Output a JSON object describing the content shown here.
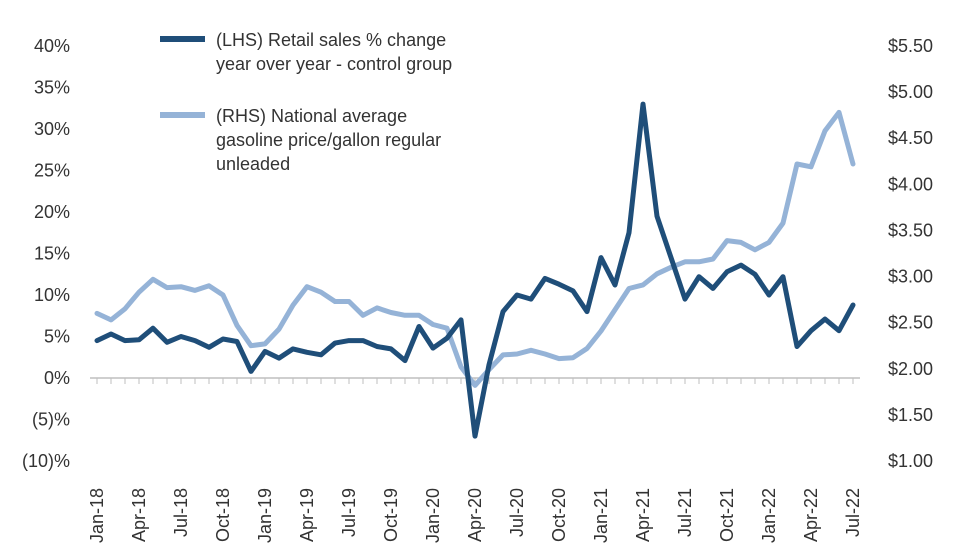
{
  "chart_data": {
    "type": "line",
    "title": "",
    "xlabel": "",
    "x": [
      "Jan-18",
      "Feb-18",
      "Mar-18",
      "Apr-18",
      "May-18",
      "Jun-18",
      "Jul-18",
      "Aug-18",
      "Sep-18",
      "Oct-18",
      "Nov-18",
      "Dec-18",
      "Jan-19",
      "Feb-19",
      "Mar-19",
      "Apr-19",
      "May-19",
      "Jun-19",
      "Jul-19",
      "Aug-19",
      "Sep-19",
      "Oct-19",
      "Nov-19",
      "Dec-19",
      "Jan-20",
      "Feb-20",
      "Mar-20",
      "Apr-20",
      "May-20",
      "Jun-20",
      "Jul-20",
      "Aug-20",
      "Sep-20",
      "Oct-20",
      "Nov-20",
      "Dec-20",
      "Jan-21",
      "Feb-21",
      "Mar-21",
      "Apr-21",
      "May-21",
      "Jun-21",
      "Jul-21",
      "Aug-21",
      "Sep-21",
      "Oct-21",
      "Nov-21",
      "Dec-21",
      "Jan-22",
      "Feb-22",
      "Mar-22",
      "Apr-22",
      "May-22",
      "Jun-22",
      "Jul-22"
    ],
    "x_tick_labels": [
      "Jan-18",
      "Apr-18",
      "Jul-18",
      "Oct-18",
      "Jan-19",
      "Apr-19",
      "Jul-19",
      "Oct-19",
      "Jan-20",
      "Apr-20",
      "Jul-20",
      "Oct-20",
      "Jan-21",
      "Apr-21",
      "Jul-21",
      "Oct-21",
      "Jan-22",
      "Apr-22",
      "Jul-22"
    ],
    "y_left": {
      "lim": [
        -10,
        40
      ],
      "tick_values": [
        -10,
        -5,
        0,
        5,
        10,
        15,
        20,
        25,
        30,
        35,
        40
      ],
      "tick_labels": [
        "(10)%",
        "(5)%",
        "0%",
        "5%",
        "10%",
        "15%",
        "20%",
        "25%",
        "30%",
        "35%",
        "40%"
      ]
    },
    "y_right": {
      "lim": [
        1.0,
        5.5
      ],
      "tick_values": [
        1.0,
        1.5,
        2.0,
        2.5,
        3.0,
        3.5,
        4.0,
        4.5,
        5.0,
        5.5
      ],
      "tick_labels": [
        "$1.00",
        "$1.50",
        "$2.00",
        "$2.50",
        "$3.00",
        "$3.50",
        "$4.00",
        "$4.50",
        "$5.00",
        "$5.50"
      ]
    },
    "grid": false,
    "legend_position": "top-center",
    "series": [
      {
        "name_lines": [
          "(LHS) Retail sales % change",
          "year over year - control group"
        ],
        "axis": "left",
        "color": "#1f4e79",
        "values": [
          4.5,
          5.3,
          4.5,
          4.6,
          6.0,
          4.3,
          5.0,
          4.5,
          3.7,
          4.7,
          4.4,
          0.8,
          3.2,
          2.4,
          3.5,
          3.1,
          2.8,
          4.2,
          4.5,
          4.5,
          3.8,
          3.5,
          2.1,
          6.2,
          3.6,
          4.8,
          7.0,
          -7.0,
          1.6,
          8.0,
          10.0,
          9.5,
          12.0,
          11.3,
          10.5,
          8.0,
          14.5,
          11.2,
          17.5,
          33.0,
          19.5,
          14.5,
          9.5,
          12.2,
          10.8,
          12.8,
          13.6,
          12.5,
          10.0,
          12.2,
          3.8,
          5.7,
          7.1,
          5.7,
          8.8
        ]
      },
      {
        "name_lines": [
          "(RHS) National average",
          "gasoline price/gallon regular",
          "unleaded"
        ],
        "axis": "right",
        "color": "#95b3d7",
        "values": [
          2.6,
          2.53,
          2.65,
          2.83,
          2.97,
          2.88,
          2.89,
          2.85,
          2.9,
          2.8,
          2.47,
          2.25,
          2.27,
          2.43,
          2.69,
          2.89,
          2.83,
          2.73,
          2.73,
          2.58,
          2.66,
          2.61,
          2.58,
          2.58,
          2.48,
          2.44,
          2.02,
          1.82,
          1.99,
          2.15,
          2.16,
          2.2,
          2.16,
          2.11,
          2.12,
          2.22,
          2.41,
          2.64,
          2.87,
          2.91,
          3.03,
          3.1,
          3.16,
          3.16,
          3.19,
          3.39,
          3.37,
          3.29,
          3.37,
          3.58,
          4.22,
          4.19,
          4.58,
          4.78,
          4.22
        ]
      }
    ]
  }
}
